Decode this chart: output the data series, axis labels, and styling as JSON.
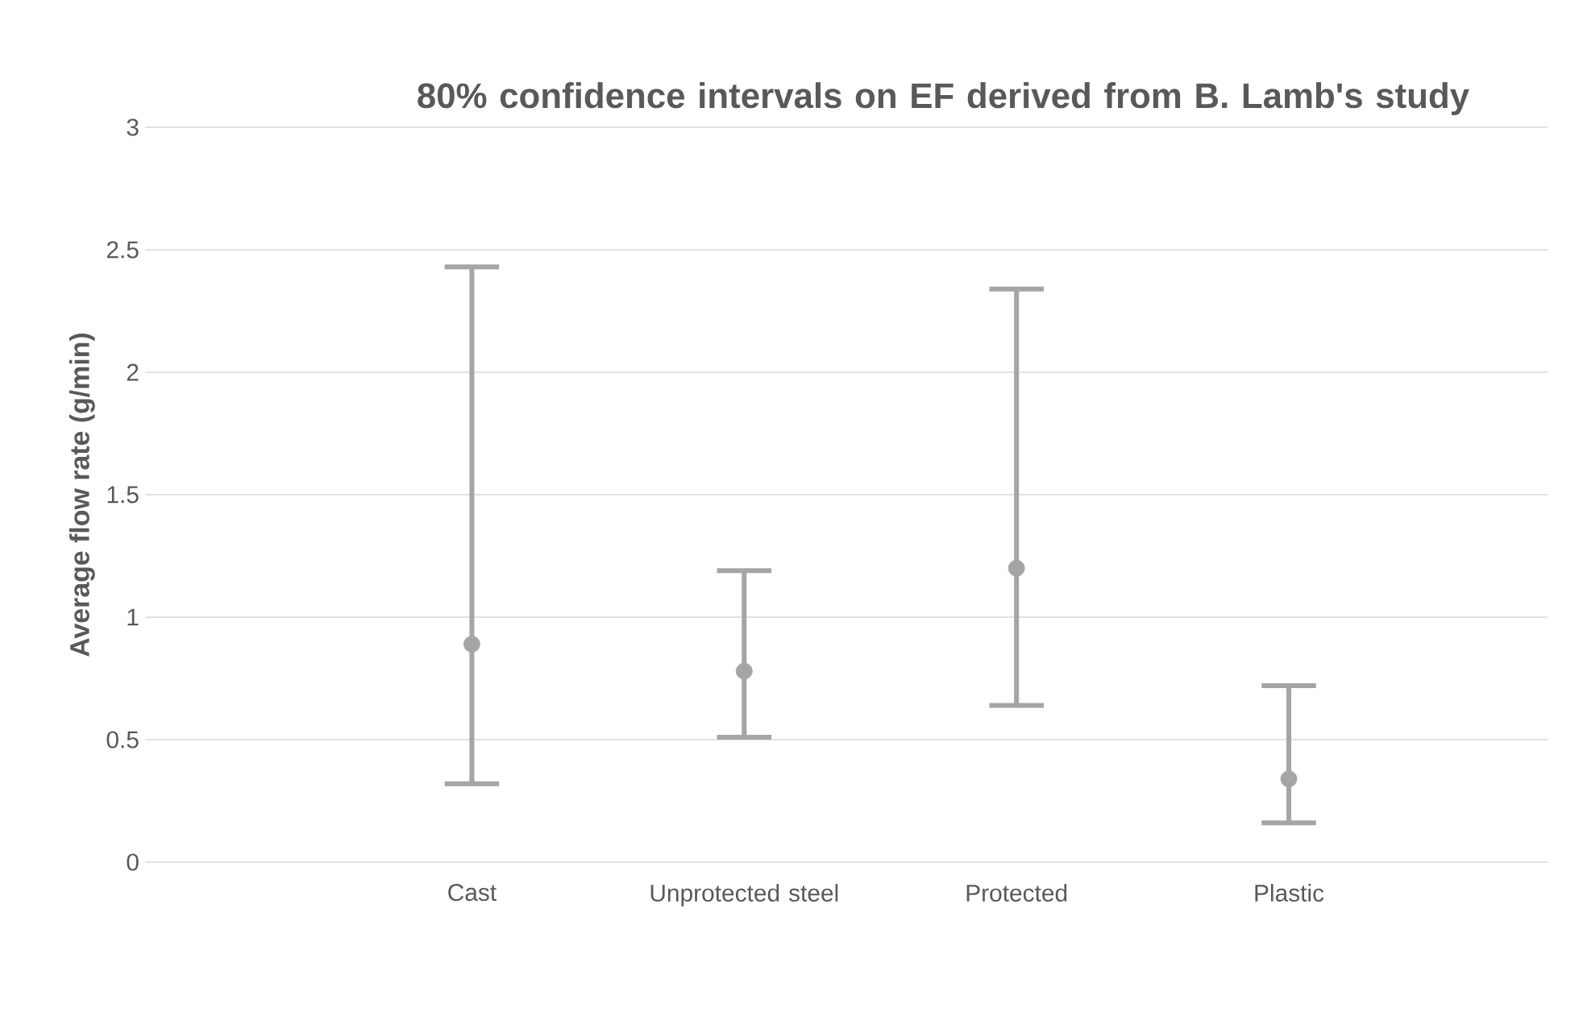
{
  "chart_data": {
    "type": "scatter",
    "title": "80% confidence intervals on EF derived from B. Lamb's study",
    "ylabel": "Average flow rate (g/min)",
    "categories": [
      "Cast",
      "Unprotected steel",
      "Protected",
      "Plastic"
    ],
    "series": [
      {
        "color": "#a5a5a5",
        "values": [
          0.89,
          0.78,
          1.2,
          0.34
        ],
        "errors": [
          [
            0.32,
            2.43
          ],
          [
            0.51,
            1.19
          ],
          [
            0.64,
            2.34
          ],
          [
            0.16,
            0.72
          ]
        ]
      }
    ],
    "ylim": [
      0,
      3
    ],
    "yticks": [
      0,
      0.5,
      1,
      1.5,
      2,
      2.5,
      3
    ],
    "grid": "y",
    "marker": "circle"
  }
}
